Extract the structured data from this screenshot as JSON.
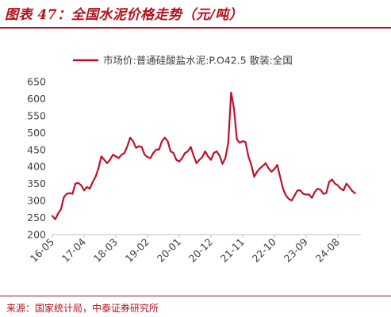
{
  "figure": {
    "title": "图表 47：全国水泥价格走势（元/吨）",
    "source": "来源：国家统计局，中泰证券研究所"
  },
  "colors": {
    "series": "#c0102a",
    "brand": "#b3101a",
    "axis": "#bfbfbf"
  },
  "chart_data": {
    "type": "line",
    "title": "",
    "xlabel": "",
    "ylabel": "",
    "ylim": [
      200,
      650
    ],
    "yticks": [
      200,
      250,
      300,
      350,
      400,
      450,
      500,
      550,
      600,
      650
    ],
    "x_range": [
      "2016-05",
      "2025-04"
    ],
    "xticks": [
      "16-05",
      "17-04",
      "18-03",
      "19-02",
      "20-01",
      "20-12",
      "21-11",
      "22-10",
      "23-09",
      "24-08"
    ],
    "grid": false,
    "legend_position": "top",
    "series": [
      {
        "name": "市场价:普通硅酸盐水泥:P.O42.5 散装:全国",
        "points": [
          [
            "2016-05",
            255
          ],
          [
            "2016-06",
            245
          ],
          [
            "2016-07",
            262
          ],
          [
            "2016-08",
            275
          ],
          [
            "2016-09",
            310
          ],
          [
            "2016-10",
            320
          ],
          [
            "2016-11",
            322
          ],
          [
            "2016-12",
            320
          ],
          [
            "2017-01",
            350
          ],
          [
            "2017-02",
            352
          ],
          [
            "2017-03",
            345
          ],
          [
            "2017-04",
            330
          ],
          [
            "2017-05",
            340
          ],
          [
            "2017-06",
            335
          ],
          [
            "2017-07",
            355
          ],
          [
            "2017-08",
            370
          ],
          [
            "2017-09",
            395
          ],
          [
            "2017-10",
            430
          ],
          [
            "2017-11",
            420
          ],
          [
            "2017-12",
            410
          ],
          [
            "2018-01",
            420
          ],
          [
            "2018-02",
            435
          ],
          [
            "2018-03",
            430
          ],
          [
            "2018-04",
            425
          ],
          [
            "2018-05",
            435
          ],
          [
            "2018-06",
            440
          ],
          [
            "2018-07",
            460
          ],
          [
            "2018-08",
            485
          ],
          [
            "2018-09",
            475
          ],
          [
            "2018-10",
            455
          ],
          [
            "2018-11",
            460
          ],
          [
            "2018-12",
            458
          ],
          [
            "2019-01",
            435
          ],
          [
            "2019-02",
            428
          ],
          [
            "2019-03",
            425
          ],
          [
            "2019-04",
            440
          ],
          [
            "2019-05",
            450
          ],
          [
            "2019-06",
            450
          ],
          [
            "2019-07",
            475
          ],
          [
            "2019-08",
            485
          ],
          [
            "2019-09",
            475
          ],
          [
            "2019-10",
            445
          ],
          [
            "2019-11",
            440
          ],
          [
            "2019-12",
            420
          ],
          [
            "2020-01",
            415
          ],
          [
            "2020-02",
            425
          ],
          [
            "2020-03",
            440
          ],
          [
            "2020-04",
            445
          ],
          [
            "2020-05",
            458
          ],
          [
            "2020-06",
            432
          ],
          [
            "2020-07",
            410
          ],
          [
            "2020-08",
            420
          ],
          [
            "2020-09",
            428
          ],
          [
            "2020-10",
            445
          ],
          [
            "2020-11",
            430
          ],
          [
            "2020-12",
            420
          ],
          [
            "2021-01",
            440
          ],
          [
            "2021-02",
            445
          ],
          [
            "2021-03",
            432
          ],
          [
            "2021-04",
            408
          ],
          [
            "2021-05",
            425
          ],
          [
            "2021-06",
            470
          ],
          [
            "2021-07",
            618
          ],
          [
            "2021-08",
            570
          ],
          [
            "2021-09",
            480
          ],
          [
            "2021-10",
            470
          ],
          [
            "2021-11",
            475
          ],
          [
            "2021-12",
            472
          ],
          [
            "2022-01",
            430
          ],
          [
            "2022-02",
            405
          ],
          [
            "2022-03",
            370
          ],
          [
            "2022-04",
            385
          ],
          [
            "2022-05",
            395
          ],
          [
            "2022-06",
            402
          ],
          [
            "2022-07",
            410
          ],
          [
            "2022-08",
            395
          ],
          [
            "2022-09",
            385
          ],
          [
            "2022-10",
            393
          ],
          [
            "2022-11",
            405
          ],
          [
            "2022-12",
            370
          ],
          [
            "2023-01",
            335
          ],
          [
            "2023-02",
            315
          ],
          [
            "2023-03",
            305
          ],
          [
            "2023-04",
            300
          ],
          [
            "2023-05",
            315
          ],
          [
            "2023-06",
            330
          ],
          [
            "2023-07",
            330
          ],
          [
            "2023-08",
            320
          ],
          [
            "2023-09",
            318
          ],
          [
            "2023-10",
            318
          ],
          [
            "2023-11",
            308
          ],
          [
            "2023-12",
            325
          ],
          [
            "2024-01",
            335
          ],
          [
            "2024-02",
            332
          ],
          [
            "2024-03",
            320
          ],
          [
            "2024-04",
            322
          ],
          [
            "2024-05",
            355
          ],
          [
            "2024-06",
            362
          ],
          [
            "2024-07",
            350
          ],
          [
            "2024-08",
            345
          ],
          [
            "2024-09",
            335
          ],
          [
            "2024-10",
            330
          ],
          [
            "2024-11",
            350
          ],
          [
            "2024-12",
            340
          ],
          [
            "2025-01",
            328
          ],
          [
            "2025-02",
            322
          ]
        ]
      }
    ]
  }
}
